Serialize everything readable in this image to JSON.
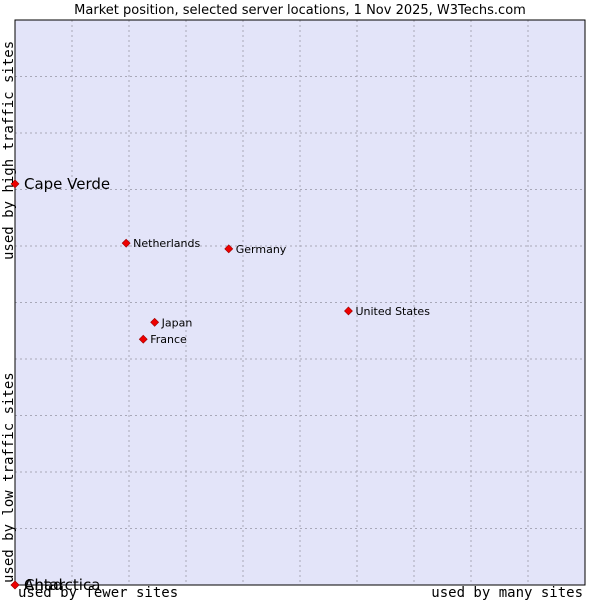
{
  "chart_data": {
    "type": "scatter",
    "title": "Market position, selected server locations, 1 Nov 2025, W3Techs.com",
    "xlabel_low": "used by fewer sites",
    "xlabel_high": "used by many sites",
    "ylabel_low": "used by low traffic sites",
    "ylabel_high": "used by high traffic sites",
    "xlim": [
      0,
      10
    ],
    "ylim": [
      0,
      10
    ],
    "grid": true,
    "points": [
      {
        "label": "Cape Verde",
        "x": 0.0,
        "y": 7.1,
        "emphasis": true
      },
      {
        "label": "Netherlands",
        "x": 1.95,
        "y": 6.05
      },
      {
        "label": "Germany",
        "x": 3.75,
        "y": 5.95
      },
      {
        "label": "United States",
        "x": 5.85,
        "y": 4.85
      },
      {
        "label": "Japan",
        "x": 2.45,
        "y": 4.65
      },
      {
        "label": "France",
        "x": 2.25,
        "y": 4.35
      },
      {
        "label": "Antarctica",
        "x": 0.0,
        "y": 0.0,
        "emphasis": true
      },
      {
        "label": "Chad",
        "x": 0.0,
        "y": 0.0,
        "emphasis": true
      }
    ]
  },
  "colors": {
    "plot_background": "#e3e4f9",
    "grid": "#a8a8b8",
    "marker": "#ee0000",
    "border": "#000000"
  }
}
